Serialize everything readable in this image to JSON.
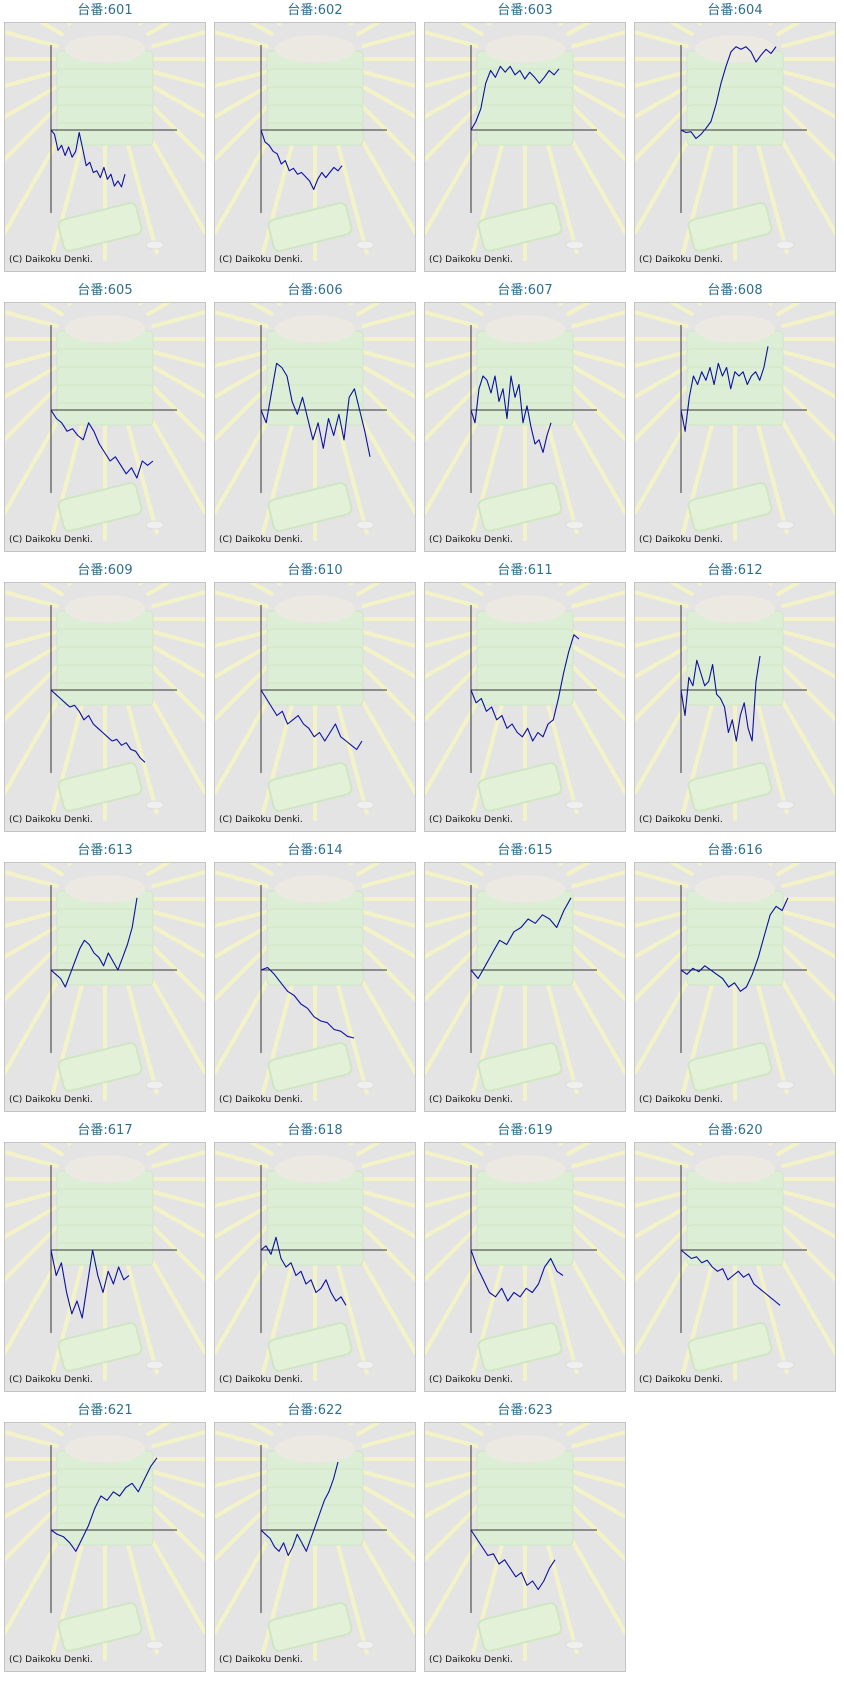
{
  "colors": {
    "title": "#2d6f8c",
    "line": "#0b10a0",
    "axis": "#333333",
    "background": "#e4e4e4"
  },
  "chart_data": [
    {
      "type": "line",
      "title": "台番:601",
      "credit": "(C) Daikoku Denki.",
      "y": [
        0,
        -5,
        -24,
        -18,
        -30,
        -20,
        -32,
        -25,
        -3,
        -22,
        -42,
        -38,
        -50,
        -48,
        -56,
        -44,
        -58,
        -52,
        -66,
        -60,
        -67,
        -52
      ]
    },
    {
      "type": "line",
      "title": "台番:602",
      "credit": "(C) Daikoku Denki.",
      "y": [
        0,
        -14,
        -18,
        -25,
        -28,
        -40,
        -36,
        -48,
        -45,
        -52,
        -50,
        -55,
        -60,
        -70,
        -58,
        -50,
        -56,
        -50,
        -44,
        -48,
        -42
      ]
    },
    {
      "type": "line",
      "title": "台番:603",
      "credit": "(C) Daikoku Denki.",
      "y": [
        0,
        10,
        25,
        55,
        70,
        62,
        75,
        68,
        75,
        65,
        70,
        60,
        68,
        62,
        55,
        62,
        70,
        65,
        72
      ]
    },
    {
      "type": "line",
      "title": "台番:604",
      "credit": "(C) Daikoku Denki.",
      "y": [
        0,
        -3,
        -2,
        -10,
        -5,
        2,
        10,
        30,
        55,
        75,
        92,
        98,
        95,
        98,
        92,
        80,
        88,
        95,
        90,
        98
      ]
    },
    {
      "type": "line",
      "title": "台番:605",
      "credit": "(C) Daikoku Denki.",
      "y": [
        0,
        -10,
        -15,
        -25,
        -22,
        -30,
        -35,
        -15,
        -25,
        -40,
        -50,
        -60,
        -55,
        -65,
        -75,
        -68,
        -80,
        -60,
        -65,
        -60
      ]
    },
    {
      "type": "line",
      "title": "台番:606",
      "credit": "(C) Daikoku Denki.",
      "y": [
        0,
        -15,
        20,
        55,
        50,
        40,
        10,
        -5,
        15,
        -10,
        -35,
        -15,
        -45,
        -10,
        -30,
        -5,
        -35,
        15,
        25,
        0,
        -25,
        -55
      ]
    },
    {
      "type": "line",
      "title": "台番:607",
      "credit": "(C) Daikoku Denki.",
      "y": [
        0,
        -15,
        25,
        40,
        35,
        20,
        40,
        10,
        25,
        -10,
        40,
        15,
        30,
        -15,
        5,
        -20,
        -40,
        -35,
        -50,
        -30,
        -15
      ]
    },
    {
      "type": "line",
      "title": "台番:608",
      "credit": "(C) Daikoku Denki.",
      "y": [
        0,
        -25,
        15,
        40,
        30,
        45,
        35,
        50,
        30,
        55,
        40,
        50,
        25,
        45,
        40,
        45,
        30,
        40,
        45,
        35,
        50,
        75
      ]
    },
    {
      "type": "line",
      "title": "台番:609",
      "credit": "(C) Daikoku Denki.",
      "y": [
        0,
        -5,
        -10,
        -15,
        -20,
        -18,
        -25,
        -35,
        -30,
        -40,
        -45,
        -50,
        -55,
        -60,
        -58,
        -65,
        -62,
        -70,
        -72,
        -80,
        -85
      ]
    },
    {
      "type": "line",
      "title": "台番:610",
      "credit": "(C) Daikoku Denki.",
      "y": [
        0,
        -10,
        -20,
        -30,
        -25,
        -40,
        -35,
        -30,
        -40,
        -45,
        -55,
        -50,
        -60,
        -50,
        -40,
        -55,
        -60,
        -65,
        -70,
        -60
      ]
    },
    {
      "type": "line",
      "title": "台番:611",
      "credit": "(C) Daikoku Denki.",
      "y": [
        0,
        -15,
        -10,
        -25,
        -20,
        -35,
        -30,
        -45,
        -40,
        -50,
        -55,
        -45,
        -60,
        -50,
        -55,
        -40,
        -35,
        -10,
        20,
        45,
        65,
        60
      ]
    },
    {
      "type": "line",
      "title": "台番:612",
      "credit": "(C) Daikoku Denki.",
      "y": [
        0,
        -30,
        15,
        5,
        35,
        20,
        5,
        10,
        30,
        -5,
        -10,
        -20,
        -50,
        -35,
        -60,
        -30,
        -15,
        -45,
        -60,
        10,
        40
      ]
    },
    {
      "type": "line",
      "title": "台番:613",
      "credit": "(C) Daikoku Denki.",
      "y": [
        0,
        -5,
        -10,
        -20,
        -5,
        10,
        25,
        35,
        30,
        20,
        15,
        5,
        20,
        10,
        0,
        15,
        30,
        50,
        85
      ]
    },
    {
      "type": "line",
      "title": "台番:614",
      "credit": "(C) Daikoku Denki.",
      "y": [
        0,
        3,
        -5,
        -15,
        -25,
        -30,
        -40,
        -45,
        -55,
        -60,
        -62,
        -70,
        -72,
        -78,
        -80
      ]
    },
    {
      "type": "line",
      "title": "台番:615",
      "credit": "(C) Daikoku Denki.",
      "y": [
        0,
        -10,
        5,
        20,
        35,
        30,
        45,
        50,
        60,
        55,
        65,
        60,
        50,
        70,
        85
      ]
    },
    {
      "type": "line",
      "title": "台番:616",
      "credit": "(C) Daikoku Denki.",
      "y": [
        0,
        -5,
        2,
        -2,
        5,
        0,
        -5,
        -10,
        -20,
        -15,
        -25,
        -20,
        -5,
        15,
        40,
        65,
        75,
        70,
        85
      ]
    },
    {
      "type": "line",
      "title": "台番:617",
      "credit": "(C) Daikoku Denki.",
      "y": [
        0,
        -30,
        -15,
        -50,
        -75,
        -60,
        -80,
        -40,
        0,
        -30,
        -50,
        -25,
        -40,
        -20,
        -35,
        -30
      ]
    },
    {
      "type": "line",
      "title": "台番:618",
      "credit": "(C) Daikoku Denki.",
      "y": [
        0,
        5,
        -5,
        15,
        -10,
        -20,
        -15,
        -30,
        -25,
        -40,
        -35,
        -50,
        -45,
        -35,
        -50,
        -60,
        -55,
        -65
      ]
    },
    {
      "type": "line",
      "title": "台番:619",
      "credit": "(C) Daikoku Denki.",
      "y": [
        0,
        -20,
        -35,
        -50,
        -55,
        -45,
        -60,
        -50,
        -55,
        -45,
        -50,
        -40,
        -20,
        -10,
        -25,
        -30
      ]
    },
    {
      "type": "line",
      "title": "台番:620",
      "credit": "(C) Daikoku Denki.",
      "y": [
        0,
        -5,
        -10,
        -8,
        -15,
        -12,
        -20,
        -25,
        -22,
        -35,
        -30,
        -25,
        -32,
        -28,
        -40,
        -45,
        -50,
        -55,
        -60,
        -65
      ]
    },
    {
      "type": "line",
      "title": "台番:621",
      "credit": "(C) Daikoku Denki.",
      "y": [
        0,
        -5,
        -8,
        -15,
        -25,
        -10,
        5,
        25,
        40,
        35,
        45,
        40,
        50,
        55,
        45,
        60,
        75,
        85
      ]
    },
    {
      "type": "line",
      "title": "台番:622",
      "credit": "(C) Daikoku Denki.",
      "y": [
        0,
        -5,
        -10,
        -20,
        -25,
        -15,
        -30,
        -20,
        -5,
        -15,
        -25,
        -10,
        5,
        20,
        35,
        45,
        60,
        80
      ]
    },
    {
      "type": "line",
      "title": "台番:623",
      "credit": "(C) Daikoku Denki.",
      "y": [
        0,
        -10,
        -20,
        -30,
        -28,
        -40,
        -35,
        -45,
        -55,
        -50,
        -65,
        -60,
        -70,
        -60,
        -45,
        -35
      ]
    }
  ]
}
